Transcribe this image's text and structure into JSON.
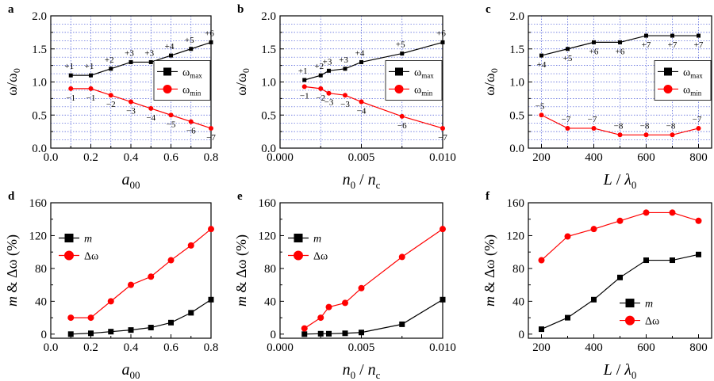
{
  "chart_data": [
    {
      "id": "a",
      "letter": "a",
      "type": "line",
      "title": "",
      "ylabel": "ω/ω",
      "ylabel_sub": "0",
      "xlabel": "a",
      "xlabel_sub": "00",
      "xlabel_rest": "",
      "xlim": [
        0.0,
        0.8
      ],
      "ylim": [
        0.0,
        2.0
      ],
      "xticks": [
        0.0,
        0.2,
        0.4,
        0.6,
        0.8
      ],
      "xtick_labels": [
        "0.0",
        "0.2",
        "0.4",
        "0.6",
        "0.8"
      ],
      "yticks": [
        0.0,
        0.5,
        1.0,
        1.5,
        2.0
      ],
      "ytick_labels": [
        "0.0",
        "0.5",
        "1.0",
        "1.5",
        "2.0"
      ],
      "grid": true,
      "legend_position": "center-right",
      "series": [
        {
          "name": "ω",
          "name_sub": "max",
          "color": "#000000",
          "marker": "square",
          "x": [
            0.1,
            0.2,
            0.3,
            0.4,
            0.5,
            0.6,
            0.7,
            0.8
          ],
          "values": [
            1.1,
            1.1,
            1.2,
            1.3,
            1.3,
            1.4,
            1.5,
            1.6
          ],
          "labels": [
            "+1",
            "+1",
            "+2",
            "+3",
            "+3",
            "+4",
            "+5",
            "+6"
          ],
          "label_side": "above"
        },
        {
          "name": "ω",
          "name_sub": "min",
          "color": "#ff0000",
          "marker": "circle",
          "x": [
            0.1,
            0.2,
            0.3,
            0.4,
            0.5,
            0.6,
            0.7,
            0.8
          ],
          "values": [
            0.9,
            0.9,
            0.8,
            0.7,
            0.6,
            0.5,
            0.4,
            0.3
          ],
          "labels": [
            "−1",
            "−1",
            "−2",
            "−3",
            "−4",
            "−5",
            "−6",
            "−7"
          ],
          "label_side": "below"
        }
      ]
    },
    {
      "id": "b",
      "letter": "b",
      "type": "line",
      "title": "",
      "ylabel": "ω/ω",
      "ylabel_sub": "0",
      "xlabel": "n",
      "xlabel_sub": "0",
      "xlabel_rest": "/ n",
      "xlabel_rest_sub": "c",
      "xlim": [
        0.0,
        0.01
      ],
      "ylim": [
        0.0,
        2.0
      ],
      "xticks": [
        0.0,
        0.005,
        0.01
      ],
      "xtick_labels": [
        "0.000",
        "0.005",
        "0.010"
      ],
      "yticks": [
        0.0,
        0.5,
        1.0,
        1.5,
        2.0
      ],
      "ytick_labels": [
        "0.0",
        "0.5",
        "1.0",
        "1.5",
        "2.0"
      ],
      "grid": true,
      "legend_position": "center-right",
      "series": [
        {
          "name": "ω",
          "name_sub": "max",
          "color": "#000000",
          "marker": "square",
          "x": [
            0.0015,
            0.0025,
            0.003,
            0.004,
            0.005,
            0.0075,
            0.01
          ],
          "values": [
            1.03,
            1.1,
            1.17,
            1.2,
            1.3,
            1.43,
            1.6
          ],
          "labels": [
            "+1",
            "+2",
            "+3",
            "+3",
            "+4",
            "+5",
            "+6"
          ],
          "label_side": "above"
        },
        {
          "name": "ω",
          "name_sub": "min",
          "color": "#ff0000",
          "marker": "circle",
          "x": [
            0.0015,
            0.0025,
            0.003,
            0.004,
            0.005,
            0.0075,
            0.01
          ],
          "values": [
            0.93,
            0.9,
            0.83,
            0.8,
            0.7,
            0.48,
            0.3
          ],
          "labels": [
            "−1",
            "−2",
            "−3",
            "−3",
            "−4",
            "−6",
            "−7"
          ],
          "label_side": "below"
        }
      ]
    },
    {
      "id": "c",
      "letter": "c",
      "type": "line",
      "title": "",
      "ylabel": "ω/ω",
      "ylabel_sub": "0",
      "xlabel": "L",
      "xlabel_sub": "",
      "xlabel_rest": "/ λ",
      "xlabel_rest_sub": "0",
      "xlim": [
        150,
        850
      ],
      "ylim": [
        0.0,
        2.0
      ],
      "xticks": [
        200,
        400,
        600,
        800
      ],
      "xtick_labels": [
        "200",
        "400",
        "600",
        "800"
      ],
      "yticks": [
        0.0,
        0.5,
        1.0,
        1.5,
        2.0
      ],
      "ytick_labels": [
        "0.0",
        "0.5",
        "1.0",
        "1.5",
        "2.0"
      ],
      "grid": true,
      "legend_position": "center-right",
      "series": [
        {
          "name": "ω",
          "name_sub": "max",
          "color": "#000000",
          "marker": "square",
          "x": [
            200,
            300,
            400,
            500,
            600,
            700,
            800
          ],
          "values": [
            1.4,
            1.5,
            1.6,
            1.6,
            1.7,
            1.7,
            1.7
          ],
          "labels": [
            "+4",
            "+5",
            "+6",
            "+6",
            "+7",
            "+7",
            "+7"
          ],
          "label_side": "below"
        },
        {
          "name": "ω",
          "name_sub": "min",
          "color": "#ff0000",
          "marker": "circle",
          "x": [
            200,
            300,
            400,
            500,
            600,
            700,
            800
          ],
          "values": [
            0.5,
            0.3,
            0.3,
            0.2,
            0.2,
            0.2,
            0.3
          ],
          "labels": [
            "−5",
            "−7",
            "−7",
            "−8",
            "−8",
            "−8",
            "−7"
          ],
          "label_side": "above"
        }
      ]
    },
    {
      "id": "d",
      "letter": "d",
      "type": "line",
      "title": "",
      "ylabel": "m & Δω (%)",
      "xlabel": "a",
      "xlabel_sub": "00",
      "xlabel_rest": "",
      "xlim": [
        0.0,
        0.8
      ],
      "ylim": [
        -5,
        160
      ],
      "xticks": [
        0.0,
        0.2,
        0.4,
        0.6,
        0.8
      ],
      "xtick_labels": [
        "0.0",
        "0.2",
        "0.4",
        "0.6",
        "0.8"
      ],
      "yticks": [
        0,
        40,
        80,
        120,
        160
      ],
      "ytick_labels": [
        "0",
        "40",
        "80",
        "120",
        "160"
      ],
      "grid": false,
      "legend_position": "upper-left",
      "series": [
        {
          "name": "m",
          "name_sub": "",
          "italic": true,
          "color": "#000000",
          "marker": "square",
          "x": [
            0.1,
            0.2,
            0.3,
            0.4,
            0.5,
            0.6,
            0.7,
            0.8
          ],
          "values": [
            0,
            1,
            3,
            5,
            8,
            14,
            26,
            42
          ]
        },
        {
          "name": "Δω",
          "name_sub": "",
          "color": "#ff0000",
          "marker": "circle",
          "x": [
            0.1,
            0.2,
            0.3,
            0.4,
            0.5,
            0.6,
            0.7,
            0.8
          ],
          "values": [
            20,
            20,
            40,
            60,
            70,
            90,
            108,
            128
          ]
        }
      ]
    },
    {
      "id": "e",
      "letter": "e",
      "type": "line",
      "title": "",
      "ylabel": "m & Δω (%)",
      "xlabel": "n",
      "xlabel_sub": "0",
      "xlabel_rest": "/ n",
      "xlabel_rest_sub": "c",
      "xlim": [
        0.0,
        0.01
      ],
      "ylim": [
        -5,
        160
      ],
      "xticks": [
        0.0,
        0.005,
        0.01
      ],
      "xtick_labels": [
        "0.000",
        "0.005",
        "0.010"
      ],
      "yticks": [
        0,
        40,
        80,
        120,
        160
      ],
      "ytick_labels": [
        "0",
        "40",
        "80",
        "120",
        "160"
      ],
      "grid": false,
      "legend_position": "upper-left",
      "series": [
        {
          "name": "m",
          "name_sub": "",
          "italic": true,
          "color": "#000000",
          "marker": "square",
          "x": [
            0.0015,
            0.0025,
            0.003,
            0.004,
            0.005,
            0.0075,
            0.01
          ],
          "values": [
            0,
            0.5,
            0.5,
            1,
            2,
            12,
            42
          ]
        },
        {
          "name": "Δω",
          "name_sub": "",
          "color": "#ff0000",
          "marker": "circle",
          "x": [
            0.0015,
            0.0025,
            0.003,
            0.004,
            0.005,
            0.0075,
            0.01
          ],
          "values": [
            7,
            20,
            33,
            38,
            56,
            94,
            128
          ]
        }
      ]
    },
    {
      "id": "f",
      "letter": "f",
      "type": "line",
      "title": "",
      "ylabel": "m & Δω (%)",
      "xlabel": "L",
      "xlabel_sub": "",
      "xlabel_rest": "/ λ",
      "xlabel_rest_sub": "0",
      "xlim": [
        150,
        850
      ],
      "ylim": [
        -5,
        160
      ],
      "xticks": [
        200,
        400,
        600,
        800
      ],
      "xtick_labels": [
        "200",
        "400",
        "600",
        "800"
      ],
      "yticks": [
        0,
        40,
        80,
        120,
        160
      ],
      "ytick_labels": [
        "0",
        "40",
        "80",
        "120",
        "160"
      ],
      "grid": false,
      "legend_position": "lower-right",
      "series": [
        {
          "name": "m",
          "name_sub": "",
          "italic": true,
          "color": "#000000",
          "marker": "square",
          "x": [
            200,
            300,
            400,
            500,
            600,
            700,
            800
          ],
          "values": [
            6,
            20,
            42,
            69,
            90,
            90,
            97
          ]
        },
        {
          "name": "Δω",
          "name_sub": "",
          "color": "#ff0000",
          "marker": "circle",
          "x": [
            200,
            300,
            400,
            500,
            600,
            700,
            800
          ],
          "values": [
            90,
            119,
            128,
            138,
            148,
            148,
            138
          ]
        }
      ]
    }
  ]
}
